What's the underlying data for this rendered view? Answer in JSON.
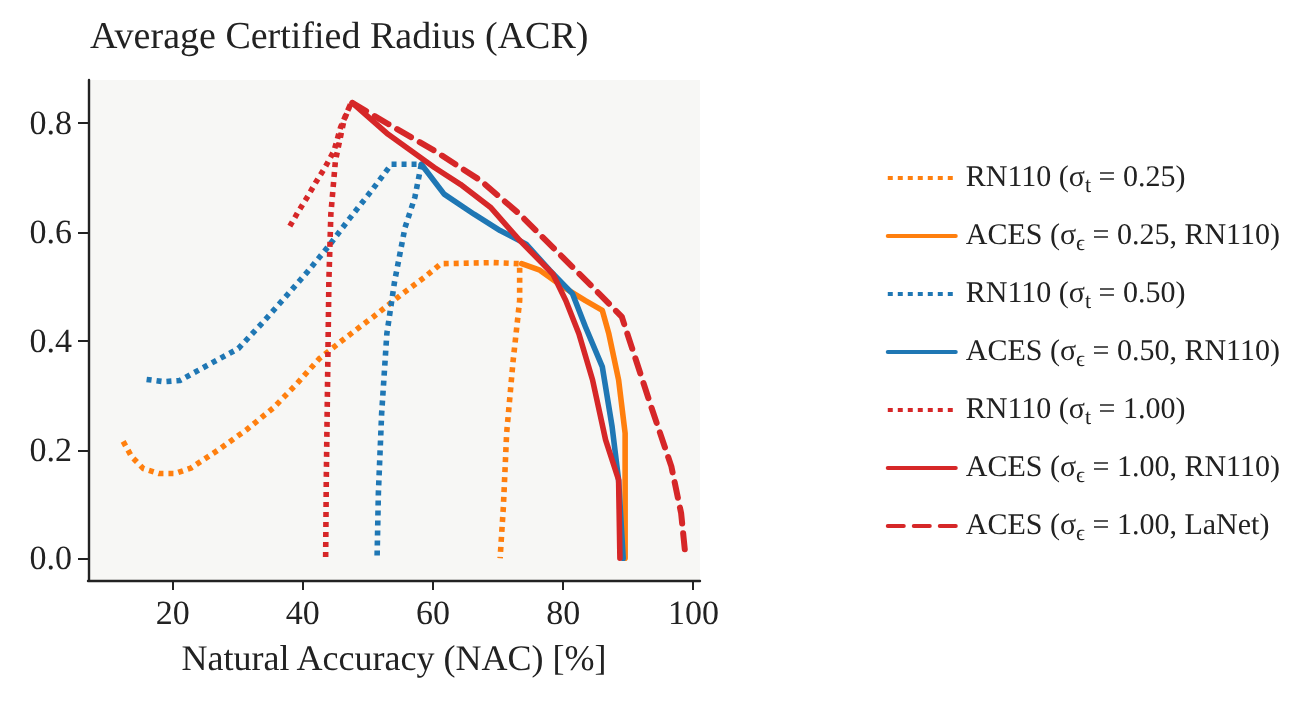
{
  "chart_data": {
    "type": "line",
    "title": "Average Certified Radius (ACR)",
    "xlabel": "Natural Accuracy (NAC) [%]",
    "xlim": [
      7,
      101
    ],
    "xticks": [
      20,
      40,
      60,
      80,
      100
    ],
    "ylim": [
      -0.04,
      0.88
    ],
    "yticks": [
      {
        "value": 0,
        "label": "0.0"
      },
      {
        "value": 0.2,
        "label": "0.2"
      },
      {
        "value": 0.4,
        "label": "0.4"
      },
      {
        "value": 0.6,
        "label": "0.6"
      },
      {
        "value": 0.8,
        "label": "0.8"
      }
    ],
    "grid": false,
    "legend": "right",
    "marker": "none",
    "series": [
      {
        "name": "RN110 (σ$_{t}$ = 0.25)",
        "color": "#ff7f0e",
        "line_style": "dotted",
        "x": [
          12.4,
          13.7,
          15.5,
          17.9,
          20.4,
          22.8,
          27.1,
          31.4,
          35.5,
          39,
          42.5,
          46.6,
          50.8,
          54.9,
          58.7,
          61.2,
          69.3,
          73.3,
          73.3,
          72.3,
          71.3,
          70.8,
          70.3
        ],
        "values": [
          0.215,
          0.187,
          0.165,
          0.156,
          0.156,
          0.166,
          0.2,
          0.237,
          0.277,
          0.32,
          0.367,
          0.406,
          0.444,
          0.483,
          0.517,
          0.542,
          0.544,
          0.542,
          0.474,
          0.364,
          0.23,
          0.095,
          0
        ]
      },
      {
        "name": "ACES (σ$_{ϵ}$ = 0.25, RN110)",
        "color": "#ff7f0e",
        "line_style": "solid",
        "x": [
          73.6,
          76.4,
          79.9,
          83.4,
          86,
          87,
          88.5,
          89.5,
          89.5
        ],
        "values": [
          0.542,
          0.53,
          0.5,
          0.474,
          0.456,
          0.413,
          0.328,
          0.23,
          0
        ]
      },
      {
        "name": "RN110 (σ$_{t}$ = 0.50)",
        "color": "#1f77b4",
        "line_style": "dotted",
        "x": [
          16,
          18.6,
          21.1,
          25.5,
          30.1,
          33.7,
          37.2,
          40.7,
          44,
          47.1,
          50.4,
          53.6,
          56.2,
          58.2,
          57.2,
          55.7,
          54.1,
          52.9,
          52.1,
          51.6,
          51.4
        ],
        "values": [
          0.329,
          0.325,
          0.327,
          0.356,
          0.386,
          0.432,
          0.479,
          0.527,
          0.575,
          0.624,
          0.674,
          0.725,
          0.725,
          0.725,
          0.664,
          0.609,
          0.51,
          0.413,
          0.266,
          0.12,
          0
        ]
      },
      {
        "name": "ACES (σ$_{ϵ}$ = 0.50, RN110)",
        "color": "#1f77b4",
        "line_style": "solid",
        "x": [
          58.2,
          61.7,
          66.3,
          70.3,
          74.3,
          77.9,
          81.4,
          83.4,
          86,
          87.5,
          88.5,
          89.2
        ],
        "values": [
          0.725,
          0.67,
          0.633,
          0.603,
          0.578,
          0.53,
          0.487,
          0.426,
          0.352,
          0.242,
          0.144,
          0
        ]
      },
      {
        "name": "RN110 (σ$_{t}$ = 1.00)",
        "color": "#d62728",
        "line_style": "dotted",
        "x": [
          38,
          39.3,
          40.8,
          42,
          43.4,
          44.8,
          45.8,
          47.4,
          46.3,
          45,
          44.3,
          44,
          43.8,
          43.6,
          43.5
        ],
        "values": [
          0.611,
          0.638,
          0.667,
          0.692,
          0.719,
          0.75,
          0.793,
          0.838,
          0.805,
          0.731,
          0.633,
          0.511,
          0.328,
          0.144,
          0
        ]
      },
      {
        "name": "ACES (σ$_{ϵ}$ = 1.00, RN110)",
        "color": "#d62728",
        "line_style": "solid",
        "x": [
          47.6,
          53.1,
          60.2,
          64.2,
          68.8,
          73.3,
          78.4,
          80.4,
          82.4,
          84.5,
          86.5,
          88.5,
          88.7
        ],
        "values": [
          0.838,
          0.78,
          0.719,
          0.688,
          0.646,
          0.585,
          0.523,
          0.474,
          0.413,
          0.328,
          0.218,
          0.144,
          0
        ]
      },
      {
        "name": "ACES (σ$_{ϵ}$ = 1.00, LaNet)",
        "color": "#d62728",
        "line_style": "dashed",
        "x": [
          47.6,
          53.1,
          60.2,
          67.3,
          73.3,
          79.4,
          85.5,
          89,
          90.5,
          93.5,
          96.6,
          98.1,
          98.8
        ],
        "values": [
          0.838,
          0.799,
          0.75,
          0.695,
          0.633,
          0.56,
          0.487,
          0.444,
          0.389,
          0.279,
          0.169,
          0.083,
          0
        ]
      }
    ]
  }
}
